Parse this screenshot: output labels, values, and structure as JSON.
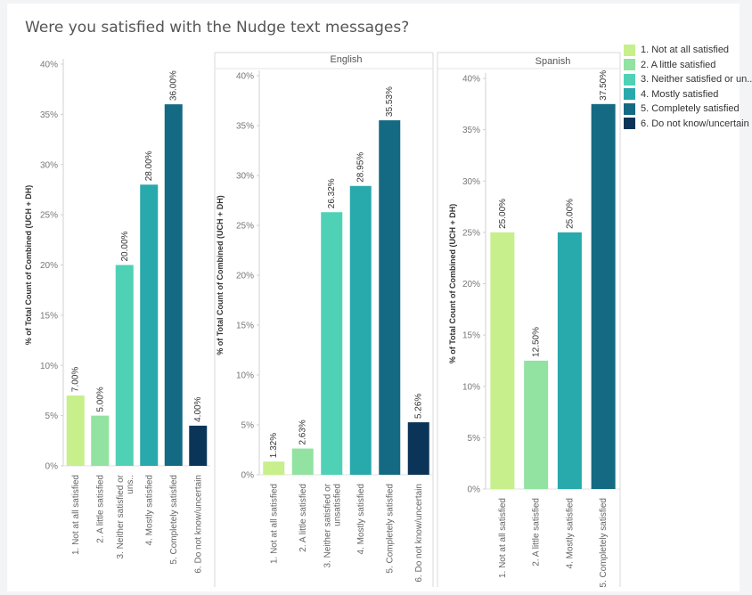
{
  "title": "Were you satisfied with the Nudge text messages?",
  "colors": {
    "1. Not at all satisfied": "#c7ef8b",
    "2. A little satisfied": "#92e2a1",
    "3. Neither satisfied or unsatisfied": "#4fd1b6",
    "4. Mostly satisfied": "#28a9ac",
    "5. Completely satisfied": "#146a82",
    "6. Do not know/uncertain": "#0b3558"
  },
  "legend": {
    "items": [
      {
        "key": "1. Not at all satisfied",
        "label": "1. Not at all satisfied"
      },
      {
        "key": "2. A little satisfied",
        "label": "2. A little satisfied"
      },
      {
        "key": "3. Neither satisfied or unsatisfied",
        "label": "3. Neither satisfied or un.."
      },
      {
        "key": "4. Mostly satisfied",
        "label": "4. Mostly satisfied"
      },
      {
        "key": "5. Completely satisfied",
        "label": "5. Completely satisfied"
      },
      {
        "key": "6. Do not know/uncertain",
        "label": "6. Do not know/uncertain"
      }
    ]
  },
  "chart_data": [
    {
      "type": "bar",
      "panel_title": "",
      "ylabel": "% of Total Count of Combined (UCH + DH)",
      "ylim": [
        0,
        40
      ],
      "yticks": [
        "0%",
        "5%",
        "10%",
        "15%",
        "20%",
        "25%",
        "30%",
        "35%",
        "40%"
      ],
      "categories": [
        "1. Not at all satisfied",
        "2. A little satisfied",
        "3. Neither satisfied or uns..",
        "4. Mostly satisfied",
        "5. Completely satisfied",
        "6. Do not know/uncertain"
      ],
      "color_keys": [
        "1. Not at all satisfied",
        "2. A little satisfied",
        "3. Neither satisfied or unsatisfied",
        "4. Mostly satisfied",
        "5. Completely satisfied",
        "6. Do not know/uncertain"
      ],
      "values": [
        7.0,
        5.0,
        20.0,
        28.0,
        36.0,
        4.0
      ],
      "data_labels": [
        "7.00%",
        "5.00%",
        "20.00%",
        "28.00%",
        "36.00%",
        "4.00%"
      ]
    },
    {
      "type": "bar",
      "panel_title": "English",
      "ylabel": "% of Total Count of Combined (UCH + DH)",
      "ylim": [
        0,
        40
      ],
      "yticks": [
        "0%",
        "5%",
        "10%",
        "15%",
        "20%",
        "25%",
        "30%",
        "35%",
        "40%"
      ],
      "categories": [
        "1. Not at all satisfied",
        "2. A little satisfied",
        "3. Neither satisfied or unsatisfied",
        "4. Mostly satisfied",
        "5. Completely satisfied",
        "6. Do not know/uncertain"
      ],
      "color_keys": [
        "1. Not at all satisfied",
        "2. A little satisfied",
        "3. Neither satisfied or unsatisfied",
        "4. Mostly satisfied",
        "5. Completely satisfied",
        "6. Do not know/uncertain"
      ],
      "values": [
        1.32,
        2.63,
        26.32,
        28.95,
        35.53,
        5.26
      ],
      "data_labels": [
        "1.32%",
        "2.63%",
        "26.32%",
        "28.95%",
        "35.53%",
        "5.26%"
      ]
    },
    {
      "type": "bar",
      "panel_title": "Spanish",
      "ylabel": "% of Total Count of Combined (UCH + DH)",
      "ylim": [
        0,
        40
      ],
      "yticks": [
        "0%",
        "5%",
        "10%",
        "15%",
        "20%",
        "25%",
        "30%",
        "35%",
        "40%"
      ],
      "categories": [
        "1. Not at all satisfied",
        "2. A little satisfied",
        "4. Mostly satisfied",
        "5. Completely satisfied"
      ],
      "color_keys": [
        "1. Not at all satisfied",
        "2. A little satisfied",
        "4. Mostly satisfied",
        "5. Completely satisfied"
      ],
      "values": [
        25.0,
        12.5,
        25.0,
        37.5
      ],
      "data_labels": [
        "25.00%",
        "12.50%",
        "25.00%",
        "37.50%"
      ]
    }
  ]
}
